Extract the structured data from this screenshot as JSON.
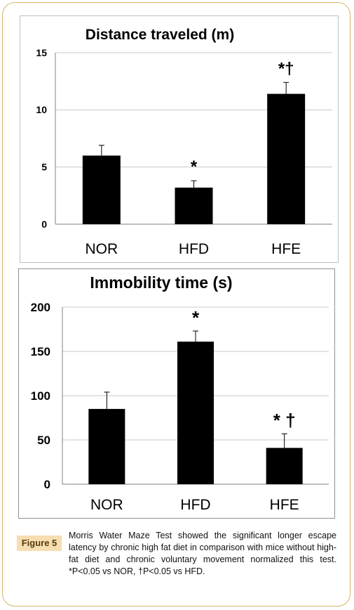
{
  "chart_data": [
    {
      "type": "bar",
      "title": "Distance traveled (m)",
      "categories": [
        "NOR",
        "HFD",
        "HFE"
      ],
      "values": [
        6.0,
        3.2,
        11.4
      ],
      "error": [
        0.9,
        0.6,
        1.0
      ],
      "significance": [
        "",
        "*",
        "*†"
      ],
      "ylim": [
        0,
        15
      ],
      "yticks": [
        "0",
        "5",
        "10",
        "15"
      ],
      "grid": true,
      "bar_color": "#000000"
    },
    {
      "type": "bar",
      "title": "Immobility time (s)",
      "categories": [
        "NOR",
        "HFD",
        "HFE"
      ],
      "values": [
        85,
        161,
        41
      ],
      "error": [
        19,
        12,
        16
      ],
      "significance": [
        "",
        "*",
        "* †"
      ],
      "ylim": [
        0,
        200
      ],
      "yticks": [
        "0",
        "50",
        "100",
        "150",
        "200"
      ],
      "grid": true,
      "bar_color": "#000000"
    }
  ],
  "figure": {
    "label": "Figure 5",
    "caption": "Morris Water Maze Test showed the significant longer escape latency by chronic high fat diet in comparison with mice without high-fat diet and chronic voluntary movement normalized this test. *P<0.05 vs NOR, †P<0.05 vs HFD."
  },
  "colors": {
    "frame": "#d8b467",
    "label_bg": "#f5deb0"
  }
}
